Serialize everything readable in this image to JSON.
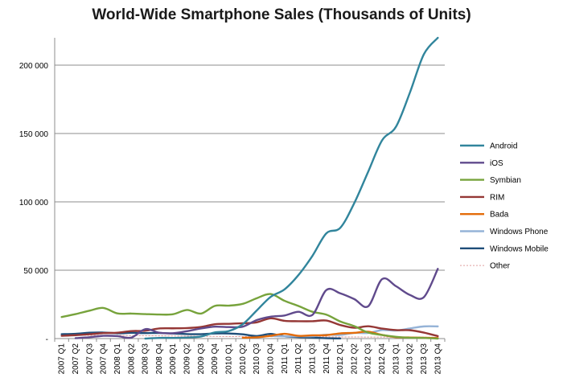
{
  "chart_data": {
    "type": "line",
    "title": "World-Wide Smartphone Sales (Thousands of Units)",
    "xlabel": "",
    "ylabel": "",
    "ylim": [
      0,
      220000
    ],
    "yticks": [
      0,
      50000,
      100000,
      150000,
      200000
    ],
    "ytick_labels": [
      "-",
      "50 000",
      "100 000",
      "150 000",
      "200 000"
    ],
    "grid": "horizontal",
    "legend_position": "right",
    "categories": [
      "2007 Q1",
      "2007 Q2",
      "2007 Q3",
      "2007 Q4",
      "2008 Q1",
      "2008 Q2",
      "2008 Q3",
      "2008 Q4",
      "2009 Q1",
      "2009 Q2",
      "2009 Q3",
      "2009 Q4",
      "2010 Q1",
      "2010 Q2",
      "2010 Q3",
      "2010 Q4",
      "2011 Q1",
      "2011 Q2",
      "2011 Q3",
      "2011 Q4",
      "2012 Q1",
      "2012 Q2",
      "2012 Q3",
      "2012 Q4",
      "2013 Q1",
      "2013 Q2",
      "2013 Q3",
      "2013 Q4"
    ],
    "series": [
      {
        "name": "Android",
        "color": "#31859c",
        "dash": "none",
        "values": [
          null,
          null,
          null,
          null,
          null,
          null,
          0,
          500,
          500,
          800,
          1500,
          4500,
          5500,
          10500,
          20500,
          30500,
          36000,
          46500,
          60500,
          77000,
          81000,
          99000,
          122000,
          145000,
          155000,
          180000,
          208000,
          220000
        ]
      },
      {
        "name": "iOS",
        "color": "#604a8c",
        "dash": "none",
        "values": [
          null,
          300,
          1000,
          2000,
          1800,
          700,
          6900,
          4300,
          3900,
          5400,
          7400,
          8700,
          8400,
          8700,
          13500,
          16000,
          16900,
          19600,
          17300,
          35500,
          33100,
          28900,
          23600,
          43500,
          38300,
          31900,
          30300,
          51000
        ]
      },
      {
        "name": "Symbian",
        "color": "#77a33c",
        "dash": "none",
        "values": [
          15800,
          17900,
          20400,
          22400,
          18400,
          18300,
          17900,
          17600,
          17800,
          20900,
          18300,
          23900,
          24100,
          25400,
          29500,
          32600,
          27600,
          23800,
          19600,
          17500,
          12500,
          9100,
          4400,
          2600,
          1300,
          600,
          500,
          0
        ]
      },
      {
        "name": "RIM",
        "color": "#953735",
        "dash": "none",
        "values": [
          2000,
          2500,
          3200,
          4000,
          4300,
          5500,
          5700,
          7400,
          7500,
          7700,
          8500,
          10500,
          10800,
          11200,
          11900,
          14800,
          13000,
          12700,
          12700,
          13200,
          9900,
          7900,
          9000,
          7300,
          6200,
          6100,
          4400,
          1800
        ]
      },
      {
        "name": "Bada",
        "color": "#e46c0a",
        "dash": "none",
        "values": [
          null,
          null,
          null,
          null,
          null,
          null,
          null,
          null,
          null,
          null,
          null,
          null,
          null,
          600,
          900,
          2000,
          3500,
          2000,
          2400,
          2500,
          3800,
          4200,
          5000,
          2700,
          1000,
          800,
          600,
          400
        ]
      },
      {
        "name": "Windows Phone",
        "color": "#95b3d7",
        "dash": "none",
        "values": [
          null,
          null,
          null,
          null,
          null,
          null,
          null,
          null,
          null,
          null,
          null,
          null,
          null,
          null,
          null,
          2000,
          1600,
          1700,
          1700,
          2800,
          2700,
          4100,
          4100,
          6200,
          5900,
          7400,
          8900,
          8900
        ]
      },
      {
        "name": "Windows Mobile",
        "color": "#1f4e79",
        "dash": "none",
        "values": [
          3200,
          3500,
          4300,
          4400,
          3900,
          4200,
          4000,
          4100,
          3700,
          3300,
          3200,
          3700,
          3700,
          3100,
          1900,
          3400,
          1600,
          1100,
          700,
          300,
          100,
          null,
          null,
          null,
          null,
          null,
          null,
          null
        ]
      },
      {
        "name": "Other",
        "color": "#e0a0a0",
        "dash": "2,2",
        "values": [
          2500,
          2600,
          2400,
          2300,
          2300,
          2200,
          2100,
          2000,
          1900,
          1800,
          1700,
          1600,
          1500,
          1500,
          1400,
          1400,
          1400,
          1300,
          1300,
          1300,
          1200,
          1200,
          1100,
          1100,
          1000,
          1000,
          1000,
          900
        ]
      }
    ]
  }
}
